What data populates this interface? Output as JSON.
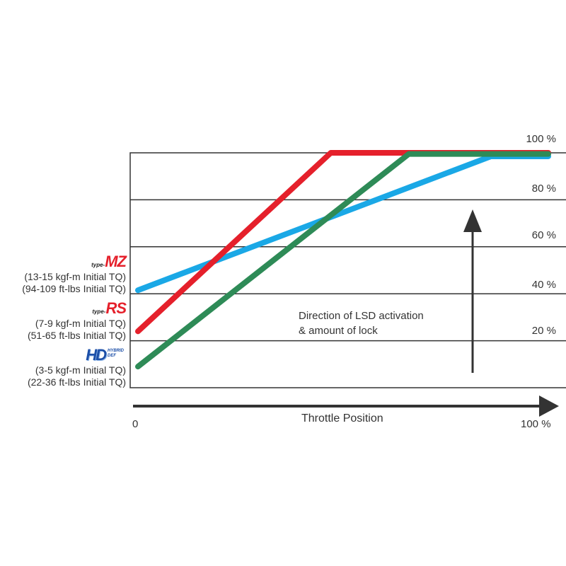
{
  "chart_data": {
    "type": "line",
    "xlabel": "Throttle Position",
    "x_tick_labels": [
      "0",
      "100 %"
    ],
    "y_tick_labels": [
      "20 %",
      "40 %",
      "60 %",
      "80 %",
      "100 %"
    ],
    "xlim": [
      0,
      100
    ],
    "ylim": [
      0,
      100
    ],
    "grid": true,
    "annotation": [
      "Direction of LSD activation",
      "& amount of lock"
    ],
    "series": [
      {
        "name": "type-MZ",
        "color": "#1aa8e6",
        "x": [
          0,
          86,
          100
        ],
        "y": [
          41.5,
          98.5,
          98.5
        ]
      },
      {
        "name": "type-RS",
        "color": "#e5202b",
        "x": [
          0,
          47,
          100
        ],
        "y": [
          24,
          100,
          100
        ]
      },
      {
        "name": "HYBRID HD DEF",
        "color": "#2e8b57",
        "x": [
          0,
          66,
          100
        ],
        "y": [
          9,
          99.5,
          99.5
        ]
      }
    ]
  },
  "legend": {
    "mz": {
      "prefix": "type-",
      "name": "MZ",
      "line1": "(13-15 kgf-m Initial TQ)",
      "line2": "(94-109 ft-lbs Initial TQ)"
    },
    "rs": {
      "prefix": "type-",
      "name": "RS",
      "line1": "(7-9 kgf-m Initial TQ)",
      "line2": "(51-65 ft-lbs Initial TQ)"
    },
    "hd": {
      "name": "HD",
      "sub": "HYBRID DEF",
      "line1": "(3-5 kgf-m Initial TQ)",
      "line2": "(22-36 ft-lbs Initial TQ)"
    }
  }
}
